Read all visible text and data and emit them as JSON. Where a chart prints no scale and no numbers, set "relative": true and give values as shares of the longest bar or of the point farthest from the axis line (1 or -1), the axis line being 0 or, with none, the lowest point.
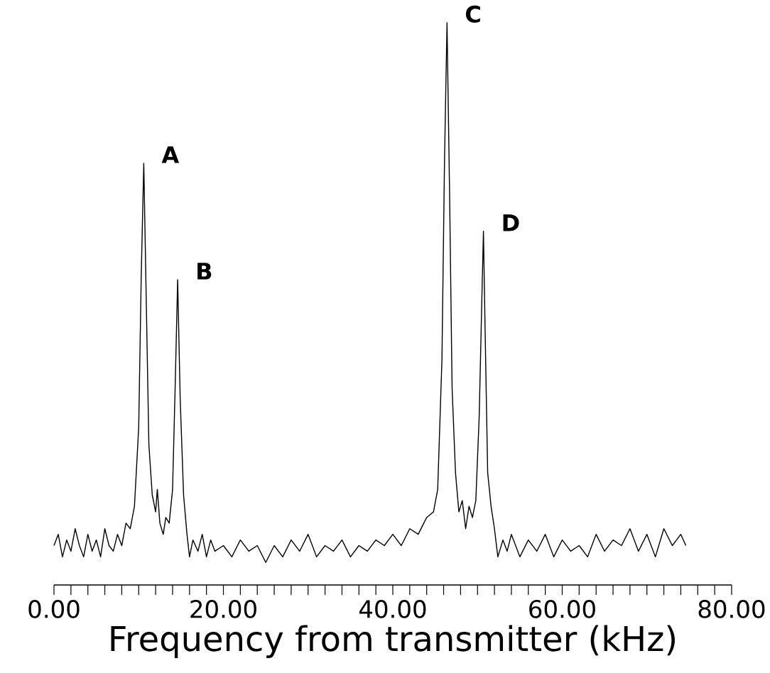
{
  "chart_data": {
    "type": "line",
    "relative": true,
    "xlabel": "Frequency from transmitter (kHz)",
    "xlim": [
      0,
      80
    ],
    "xticks": [
      {
        "value": 0,
        "label": "0.00"
      },
      {
        "value": 2,
        "label": null
      },
      {
        "value": 4,
        "label": null
      },
      {
        "value": 6,
        "label": null
      },
      {
        "value": 8,
        "label": null
      },
      {
        "value": 10,
        "label": null
      },
      {
        "value": 12,
        "label": null
      },
      {
        "value": 14,
        "label": null
      },
      {
        "value": 16,
        "label": null
      },
      {
        "value": 18,
        "label": null
      },
      {
        "value": 20,
        "label": "20.00"
      },
      {
        "value": 22,
        "label": null
      },
      {
        "value": 24,
        "label": null
      },
      {
        "value": 26,
        "label": null
      },
      {
        "value": 28,
        "label": null
      },
      {
        "value": 30,
        "label": null
      },
      {
        "value": 32,
        "label": null
      },
      {
        "value": 34,
        "label": null
      },
      {
        "value": 36,
        "label": null
      },
      {
        "value": 38,
        "label": null
      },
      {
        "value": 40,
        "label": "40.00"
      },
      {
        "value": 42,
        "label": null
      },
      {
        "value": 44,
        "label": null
      },
      {
        "value": 46,
        "label": null
      },
      {
        "value": 48,
        "label": null
      },
      {
        "value": 50,
        "label": null
      },
      {
        "value": 52,
        "label": null
      },
      {
        "value": 54,
        "label": null
      },
      {
        "value": 56,
        "label": null
      },
      {
        "value": 58,
        "label": null
      },
      {
        "value": 60,
        "label": "60.00"
      },
      {
        "value": 62,
        "label": null
      },
      {
        "value": 64,
        "label": null
      },
      {
        "value": 66,
        "label": null
      },
      {
        "value": 68,
        "label": null
      },
      {
        "value": 70,
        "label": null
      },
      {
        "value": 72,
        "label": null
      },
      {
        "value": 74,
        "label": null
      },
      {
        "value": 76,
        "label": null
      },
      {
        "value": 78,
        "label": null
      },
      {
        "value": 80,
        "label": "80.00"
      }
    ],
    "marker": "none",
    "line_style": "solid",
    "series": [
      {
        "color": "#000000",
        "x": [
          0,
          0.5,
          1,
          1.5,
          2,
          2.5,
          3,
          3.5,
          4,
          4.5,
          5,
          5.5,
          6,
          6.5,
          7,
          7.5,
          8,
          8.5,
          9,
          9.5,
          10,
          10.3,
          10.6,
          10.9,
          11.2,
          11.6,
          12,
          12.2,
          12.5,
          12.9,
          13.2,
          13.6,
          14,
          14.3,
          14.6,
          14.9,
          15.3,
          15.7,
          16,
          16.4,
          17,
          17.5,
          18,
          18.5,
          19,
          20,
          21,
          22,
          23,
          24,
          25,
          26,
          27,
          28,
          29,
          30,
          31,
          32,
          33,
          34,
          35,
          36,
          37,
          38,
          39,
          40,
          41,
          42,
          43,
          44,
          44.8,
          45.3,
          45.8,
          46.1,
          46.4,
          46.7,
          47,
          47.4,
          47.8,
          48.2,
          48.6,
          49,
          49.4,
          49.8,
          50.2,
          50.5,
          50.7,
          50.9,
          51.2,
          51.6,
          52,
          52.4,
          53,
          53.5,
          54,
          55,
          56,
          57,
          58,
          59,
          60,
          61,
          62,
          63,
          64,
          65,
          66,
          67,
          68,
          69,
          70,
          71,
          72,
          73,
          74,
          74.6
        ],
        "values": [
          0.07,
          0.09,
          0.05,
          0.08,
          0.06,
          0.1,
          0.07,
          0.05,
          0.09,
          0.06,
          0.08,
          0.05,
          0.1,
          0.07,
          0.06,
          0.09,
          0.07,
          0.11,
          0.1,
          0.14,
          0.28,
          0.55,
          0.75,
          0.5,
          0.25,
          0.16,
          0.13,
          0.17,
          0.11,
          0.09,
          0.12,
          0.11,
          0.17,
          0.35,
          0.543,
          0.33,
          0.16,
          0.09,
          0.05,
          0.08,
          0.06,
          0.09,
          0.05,
          0.08,
          0.06,
          0.07,
          0.05,
          0.08,
          0.06,
          0.07,
          0.04,
          0.07,
          0.05,
          0.08,
          0.06,
          0.09,
          0.05,
          0.07,
          0.06,
          0.08,
          0.05,
          0.07,
          0.06,
          0.08,
          0.07,
          0.09,
          0.07,
          0.1,
          0.09,
          0.12,
          0.13,
          0.17,
          0.4,
          0.75,
          1,
          0.7,
          0.35,
          0.2,
          0.13,
          0.15,
          0.1,
          0.14,
          0.12,
          0.15,
          0.3,
          0.5,
          0.629,
          0.45,
          0.2,
          0.14,
          0.1,
          0.05,
          0.08,
          0.06,
          0.09,
          0.05,
          0.08,
          0.06,
          0.09,
          0.05,
          0.08,
          0.06,
          0.07,
          0.05,
          0.09,
          0.06,
          0.08,
          0.07,
          0.1,
          0.06,
          0.09,
          0.05,
          0.1,
          0.07,
          0.09,
          0.07
        ]
      }
    ],
    "annotations": [
      {
        "text": "A",
        "x": 10.6,
        "y": 0.75
      },
      {
        "text": "B",
        "x": 14.6,
        "y": 0.543
      },
      {
        "text": "C",
        "x": 46.4,
        "y": 1
      },
      {
        "text": "D",
        "x": 50.7,
        "y": 0.629
      }
    ]
  }
}
